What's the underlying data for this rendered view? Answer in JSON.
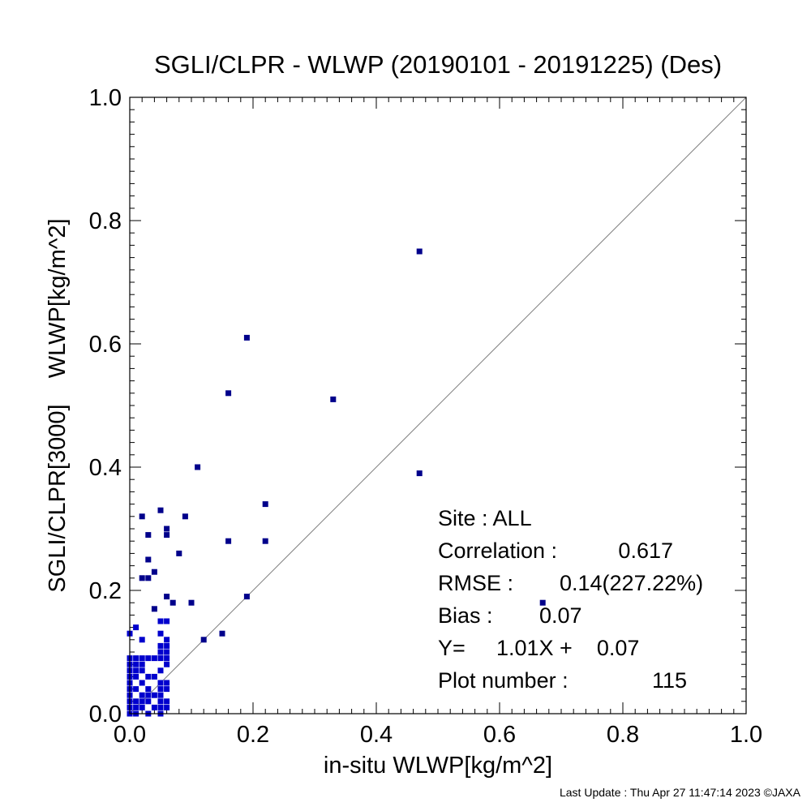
{
  "chart_data": {
    "type": "scatter",
    "title": "SGLI/CLPR - WLWP (20190101 - 20191225) (Des)",
    "xlabel": "in-situ WLWP[kg/m^2]",
    "ylabel": "SGLI/CLPR[3000]    WLWP[kg/m^2]",
    "xlim": [
      0.0,
      1.0
    ],
    "ylim": [
      0.0,
      1.0
    ],
    "xticks": [
      "0.0",
      "0.2",
      "0.4",
      "0.6",
      "0.8",
      "1.0"
    ],
    "yticks": [
      "0.0",
      "0.2",
      "0.4",
      "0.6",
      "0.8",
      "1.0"
    ],
    "reference_line": "y = x",
    "marker_color": "#00008B",
    "marker_dense_color": "#0000CD",
    "points": [
      [
        0.47,
        0.75
      ],
      [
        0.19,
        0.61
      ],
      [
        0.16,
        0.52
      ],
      [
        0.33,
        0.51
      ],
      [
        0.11,
        0.4
      ],
      [
        0.47,
        0.39
      ],
      [
        0.22,
        0.34
      ],
      [
        0.05,
        0.33
      ],
      [
        0.02,
        0.32
      ],
      [
        0.09,
        0.32
      ],
      [
        0.06,
        0.3
      ],
      [
        0.06,
        0.29
      ],
      [
        0.03,
        0.29
      ],
      [
        0.16,
        0.28
      ],
      [
        0.22,
        0.28
      ],
      [
        0.08,
        0.26
      ],
      [
        0.03,
        0.25
      ],
      [
        0.04,
        0.23
      ],
      [
        0.02,
        0.22
      ],
      [
        0.03,
        0.22
      ],
      [
        0.06,
        0.19
      ],
      [
        0.19,
        0.19
      ],
      [
        0.07,
        0.18
      ],
      [
        0.1,
        0.18
      ],
      [
        0.67,
        0.18
      ],
      [
        0.04,
        0.17
      ],
      [
        0.05,
        0.15
      ],
      [
        0.06,
        0.15
      ],
      [
        0.01,
        0.14
      ],
      [
        0.0,
        0.13
      ],
      [
        0.15,
        0.13
      ],
      [
        0.05,
        0.13
      ],
      [
        0.06,
        0.12
      ],
      [
        0.12,
        0.12
      ],
      [
        0.02,
        0.12
      ],
      [
        0.05,
        0.11
      ],
      [
        0.06,
        0.11
      ],
      [
        0.05,
        0.1
      ],
      [
        0.06,
        0.1
      ],
      [
        0.0,
        0.09
      ],
      [
        0.01,
        0.09
      ],
      [
        0.02,
        0.09
      ],
      [
        0.03,
        0.09
      ],
      [
        0.04,
        0.09
      ],
      [
        0.05,
        0.09
      ],
      [
        0.06,
        0.09
      ],
      [
        0.0,
        0.08
      ],
      [
        0.01,
        0.08
      ],
      [
        0.02,
        0.08
      ],
      [
        0.06,
        0.08
      ],
      [
        0.0,
        0.07
      ],
      [
        0.01,
        0.07
      ],
      [
        0.02,
        0.07
      ],
      [
        0.05,
        0.07
      ],
      [
        0.0,
        0.06
      ],
      [
        0.01,
        0.06
      ],
      [
        0.03,
        0.06
      ],
      [
        0.04,
        0.06
      ],
      [
        0.0,
        0.05
      ],
      [
        0.02,
        0.05
      ],
      [
        0.05,
        0.05
      ],
      [
        0.06,
        0.05
      ],
      [
        0.0,
        0.04
      ],
      [
        0.01,
        0.04
      ],
      [
        0.03,
        0.04
      ],
      [
        0.05,
        0.04
      ],
      [
        0.06,
        0.04
      ],
      [
        0.0,
        0.03
      ],
      [
        0.02,
        0.03
      ],
      [
        0.03,
        0.03
      ],
      [
        0.04,
        0.03
      ],
      [
        0.05,
        0.03
      ],
      [
        0.0,
        0.02
      ],
      [
        0.01,
        0.02
      ],
      [
        0.02,
        0.02
      ],
      [
        0.03,
        0.02
      ],
      [
        0.05,
        0.02
      ],
      [
        0.06,
        0.02
      ],
      [
        0.0,
        0.01
      ],
      [
        0.01,
        0.01
      ],
      [
        0.02,
        0.01
      ],
      [
        0.04,
        0.01
      ],
      [
        0.05,
        0.01
      ],
      [
        0.06,
        0.01
      ],
      [
        0.0,
        0.0
      ],
      [
        0.01,
        0.0
      ],
      [
        0.03,
        0.0
      ],
      [
        0.05,
        0.0
      ]
    ],
    "stats": [
      {
        "label": "Site : ALL",
        "value": ""
      },
      {
        "label": "Correlation :",
        "value": "0.617"
      },
      {
        "label": "RMSE :",
        "value": "0.14(227.22%)"
      },
      {
        "label": "Bias :",
        "value": "0.07"
      },
      {
        "label": "Y=",
        "value": "1.01X +    0.07"
      },
      {
        "label": "Plot number :",
        "value": "115"
      }
    ]
  },
  "footer": "Last Update : Thu Apr 27 11:47:14 2023  ©JAXA"
}
